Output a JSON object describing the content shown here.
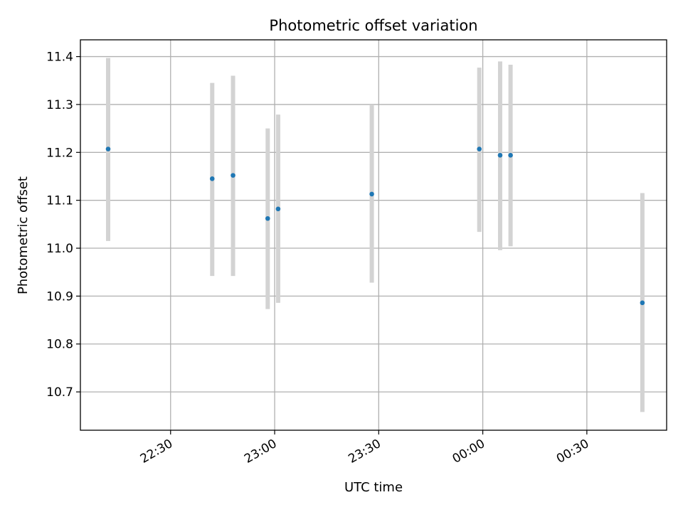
{
  "chart_data": {
    "type": "scatter",
    "title": "Photometric offset variation",
    "xlabel": "UTC time",
    "ylabel": "Photometric offset",
    "x_start": "22:04",
    "x_end": "00:53",
    "xticks": [
      "22:30",
      "23:00",
      "23:30",
      "00:00",
      "00:30"
    ],
    "ylim": [
      10.62,
      11.435
    ],
    "yticks": [
      "10.7",
      "10.8",
      "10.9",
      "11.0",
      "11.1",
      "11.2",
      "11.3",
      "11.4"
    ],
    "grid": true,
    "points": [
      {
        "x": "22:12",
        "y": 11.207,
        "err_low": 11.015,
        "err_high": 11.397
      },
      {
        "x": "22:42",
        "y": 11.145,
        "err_low": 10.942,
        "err_high": 11.345
      },
      {
        "x": "22:48",
        "y": 11.152,
        "err_low": 10.942,
        "err_high": 11.36
      },
      {
        "x": "22:58",
        "y": 11.062,
        "err_low": 10.873,
        "err_high": 11.25
      },
      {
        "x": "23:01",
        "y": 11.082,
        "err_low": 10.886,
        "err_high": 11.279
      },
      {
        "x": "23:28",
        "y": 11.113,
        "err_low": 10.928,
        "err_high": 11.3
      },
      {
        "x": "23:59",
        "y": 11.207,
        "err_low": 11.034,
        "err_high": 11.377
      },
      {
        "x": "00:05",
        "y": 11.194,
        "err_low": 10.996,
        "err_high": 11.39
      },
      {
        "x": "00:08",
        "y": 11.194,
        "err_low": 11.004,
        "err_high": 11.383
      },
      {
        "x": "00:46",
        "y": 10.886,
        "err_low": 10.658,
        "err_high": 11.115
      }
    ],
    "marker_color": "#1f77b4",
    "errorbar_color": "#d3d3d3",
    "grid_color": "#b0b0b0"
  }
}
